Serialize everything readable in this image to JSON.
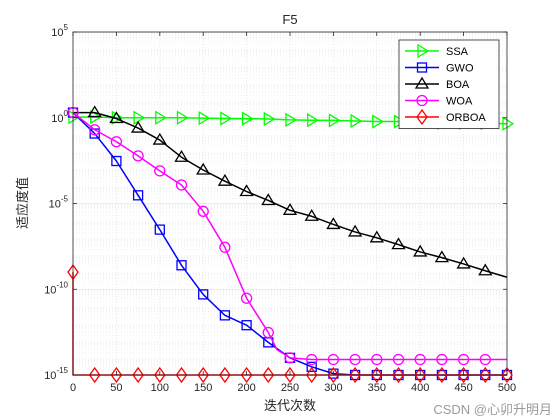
{
  "chart_data": {
    "type": "line",
    "title": "F5",
    "xlabel": "迭代次数",
    "ylabel": "适应度值",
    "xlim": [
      0,
      500
    ],
    "ylim_exponent": [
      -15,
      5
    ],
    "y_scale": "log",
    "xticks": [
      "0",
      "50",
      "100",
      "150",
      "200",
      "250",
      "300",
      "350",
      "400",
      "450",
      "500"
    ],
    "yticks": [
      {
        "exp": -15,
        "base": "10",
        "power": "-15"
      },
      {
        "exp": -10,
        "base": "10",
        "power": "-10"
      },
      {
        "exp": -5,
        "base": "10",
        "power": "-5"
      },
      {
        "exp": 0,
        "base": "10",
        "power": "0"
      },
      {
        "exp": 5,
        "base": "10",
        "power": "5"
      }
    ],
    "grid": true,
    "legend_position": "top-right",
    "series": [
      {
        "name": "SSA",
        "color": "#00ff00",
        "marker": "triangle-right",
        "points": [
          [
            0,
            1.1
          ],
          [
            25,
            1.1
          ],
          [
            50,
            1.0
          ],
          [
            75,
            1.0
          ],
          [
            100,
            1.0
          ],
          [
            125,
            1.0
          ],
          [
            150,
            0.95
          ],
          [
            175,
            0.9
          ],
          [
            200,
            0.88
          ],
          [
            225,
            0.85
          ],
          [
            250,
            0.75
          ],
          [
            275,
            0.72
          ],
          [
            300,
            0.7
          ],
          [
            325,
            0.65
          ],
          [
            350,
            0.6
          ],
          [
            375,
            0.6
          ],
          [
            400,
            0.55
          ],
          [
            425,
            0.5
          ],
          [
            450,
            0.5
          ],
          [
            475,
            0.48
          ],
          [
            500,
            0.45
          ]
        ],
        "markers": [
          [
            0,
            1.1
          ],
          [
            25,
            1.1
          ],
          [
            50,
            1.0
          ],
          [
            75,
            1.0
          ],
          [
            100,
            1.0
          ],
          [
            125,
            1.0
          ],
          [
            150,
            0.95
          ],
          [
            175,
            0.9
          ],
          [
            200,
            0.88
          ],
          [
            225,
            0.85
          ],
          [
            250,
            0.75
          ],
          [
            275,
            0.72
          ],
          [
            300,
            0.7
          ],
          [
            325,
            0.65
          ],
          [
            350,
            0.6
          ],
          [
            375,
            0.6
          ],
          [
            400,
            0.55
          ],
          [
            425,
            0.5
          ],
          [
            450,
            0.5
          ],
          [
            475,
            0.48
          ],
          [
            500,
            0.45
          ]
        ]
      },
      {
        "name": "GWO",
        "color": "#0000ff",
        "marker": "square",
        "points": [
          [
            0,
            2.0
          ],
          [
            25,
            0.12
          ],
          [
            50,
            0.003
          ],
          [
            75,
            3e-05
          ],
          [
            100,
            3e-07
          ],
          [
            125,
            2.5e-09
          ],
          [
            150,
            5e-11
          ],
          [
            175,
            3e-12
          ],
          [
            200,
            8e-13
          ],
          [
            225,
            8e-14
          ],
          [
            250,
            1e-14
          ],
          [
            275,
            3e-15
          ],
          [
            300,
            1.2e-15
          ],
          [
            325,
            4e-16
          ],
          [
            350,
            2e-16
          ],
          [
            375,
            2e-16
          ],
          [
            400,
            2e-16
          ],
          [
            425,
            2e-16
          ],
          [
            450,
            2e-16
          ],
          [
            475,
            2e-16
          ],
          [
            500,
            2e-16
          ]
        ],
        "markers": [
          [
            0,
            2.0
          ],
          [
            25,
            0.12
          ],
          [
            50,
            0.003
          ],
          [
            75,
            3e-05
          ],
          [
            100,
            3e-07
          ],
          [
            125,
            2.5e-09
          ],
          [
            150,
            5e-11
          ],
          [
            175,
            3e-12
          ],
          [
            200,
            8e-13
          ],
          [
            225,
            8e-14
          ],
          [
            250,
            1e-14
          ],
          [
            275,
            3e-15
          ],
          [
            300,
            1.2e-15
          ],
          [
            325,
            4e-16
          ],
          [
            350,
            2e-16
          ],
          [
            375,
            2e-16
          ],
          [
            400,
            2e-16
          ],
          [
            425,
            2e-16
          ],
          [
            450,
            2e-16
          ],
          [
            475,
            2e-16
          ],
          [
            500,
            2e-16
          ]
        ]
      },
      {
        "name": "BOA",
        "color": "#000000",
        "marker": "triangle-up",
        "points": [
          [
            0,
            2.0
          ],
          [
            25,
            2.0
          ],
          [
            50,
            0.9
          ],
          [
            75,
            0.25
          ],
          [
            100,
            0.05
          ],
          [
            125,
            0.005
          ],
          [
            150,
            0.0009
          ],
          [
            175,
            0.0002
          ],
          [
            200,
            5e-05
          ],
          [
            225,
            1.5e-05
          ],
          [
            250,
            4e-06
          ],
          [
            275,
            1.8e-06
          ],
          [
            300,
            6e-07
          ],
          [
            325,
            2.2e-07
          ],
          [
            350,
            1e-07
          ],
          [
            375,
            4e-08
          ],
          [
            400,
            1.5e-08
          ],
          [
            425,
            7e-09
          ],
          [
            450,
            3e-09
          ],
          [
            475,
            1.2e-09
          ],
          [
            500,
            5e-10
          ]
        ],
        "markers": [
          [
            25,
            2.0
          ],
          [
            50,
            0.9
          ],
          [
            75,
            0.25
          ],
          [
            100,
            0.05
          ],
          [
            125,
            0.005
          ],
          [
            150,
            0.0009
          ],
          [
            175,
            0.0002
          ],
          [
            200,
            5e-05
          ],
          [
            225,
            1.5e-05
          ],
          [
            250,
            4e-06
          ],
          [
            275,
            1.8e-06
          ],
          [
            300,
            6e-07
          ],
          [
            325,
            2.2e-07
          ],
          [
            350,
            1e-07
          ],
          [
            375,
            4e-08
          ],
          [
            400,
            1.5e-08
          ],
          [
            425,
            7e-09
          ],
          [
            450,
            3e-09
          ],
          [
            475,
            1.2e-09
          ]
        ]
      },
      {
        "name": "WOA",
        "color": "#ff00ff",
        "marker": "circle",
        "points": [
          [
            0,
            2.0
          ],
          [
            25,
            0.2
          ],
          [
            50,
            0.04
          ],
          [
            75,
            0.006
          ],
          [
            100,
            0.0008
          ],
          [
            125,
            0.00012
          ],
          [
            150,
            3.5e-06
          ],
          [
            175,
            2.8e-08
          ],
          [
            200,
            3e-11
          ],
          [
            225,
            3e-13
          ],
          [
            235,
            3e-14
          ],
          [
            250,
            1e-14
          ],
          [
            275,
            8e-15
          ],
          [
            300,
            8e-15
          ],
          [
            325,
            8e-15
          ],
          [
            350,
            8e-15
          ],
          [
            375,
            8e-15
          ],
          [
            400,
            8e-15
          ],
          [
            425,
            8e-15
          ],
          [
            450,
            8e-15
          ],
          [
            475,
            8e-15
          ],
          [
            500,
            8e-15
          ]
        ],
        "markers": [
          [
            0,
            2.0
          ],
          [
            25,
            0.2
          ],
          [
            50,
            0.04
          ],
          [
            75,
            0.006
          ],
          [
            100,
            0.0008
          ],
          [
            125,
            0.00012
          ],
          [
            150,
            3.5e-06
          ],
          [
            175,
            2.8e-08
          ],
          [
            200,
            3e-11
          ],
          [
            225,
            3e-13
          ],
          [
            250,
            1e-14
          ],
          [
            275,
            8e-15
          ],
          [
            300,
            8e-15
          ],
          [
            325,
            8e-15
          ],
          [
            350,
            8e-15
          ],
          [
            375,
            8e-15
          ],
          [
            400,
            8e-15
          ],
          [
            425,
            8e-15
          ],
          [
            450,
            8e-15
          ],
          [
            475,
            8e-15
          ]
        ]
      },
      {
        "name": "ORBOA",
        "color": "#ff0000",
        "marker": "diamond",
        "points": [
          [
            0,
            1e-09
          ],
          [
            0,
            1e-15
          ],
          [
            25,
            1e-15
          ],
          [
            50,
            1e-15
          ],
          [
            75,
            1e-15
          ],
          [
            100,
            1e-15
          ],
          [
            125,
            1e-15
          ],
          [
            150,
            1e-15
          ],
          [
            175,
            1e-15
          ],
          [
            200,
            1e-15
          ],
          [
            225,
            1e-15
          ],
          [
            250,
            1e-15
          ],
          [
            275,
            1e-15
          ],
          [
            300,
            1e-15
          ],
          [
            325,
            1e-15
          ],
          [
            350,
            1e-15
          ],
          [
            375,
            1e-15
          ],
          [
            400,
            1e-15
          ],
          [
            425,
            1e-15
          ],
          [
            450,
            1e-15
          ],
          [
            475,
            1e-15
          ],
          [
            500,
            1e-15
          ]
        ],
        "markers": [
          [
            0,
            1e-09
          ],
          [
            25,
            1e-15
          ],
          [
            50,
            1e-15
          ],
          [
            75,
            1e-15
          ],
          [
            100,
            1e-15
          ],
          [
            125,
            1e-15
          ],
          [
            150,
            1e-15
          ],
          [
            175,
            1e-15
          ],
          [
            200,
            1e-15
          ],
          [
            225,
            1e-15
          ],
          [
            250,
            1e-15
          ],
          [
            275,
            1e-15
          ],
          [
            300,
            1e-15
          ],
          [
            325,
            1e-15
          ],
          [
            350,
            1e-15
          ],
          [
            375,
            1e-15
          ],
          [
            400,
            1e-15
          ],
          [
            425,
            1e-15
          ],
          [
            450,
            1e-15
          ],
          [
            475,
            1e-15
          ],
          [
            500,
            1e-15
          ]
        ]
      }
    ]
  },
  "watermark": "CSDN @心卯升明月"
}
